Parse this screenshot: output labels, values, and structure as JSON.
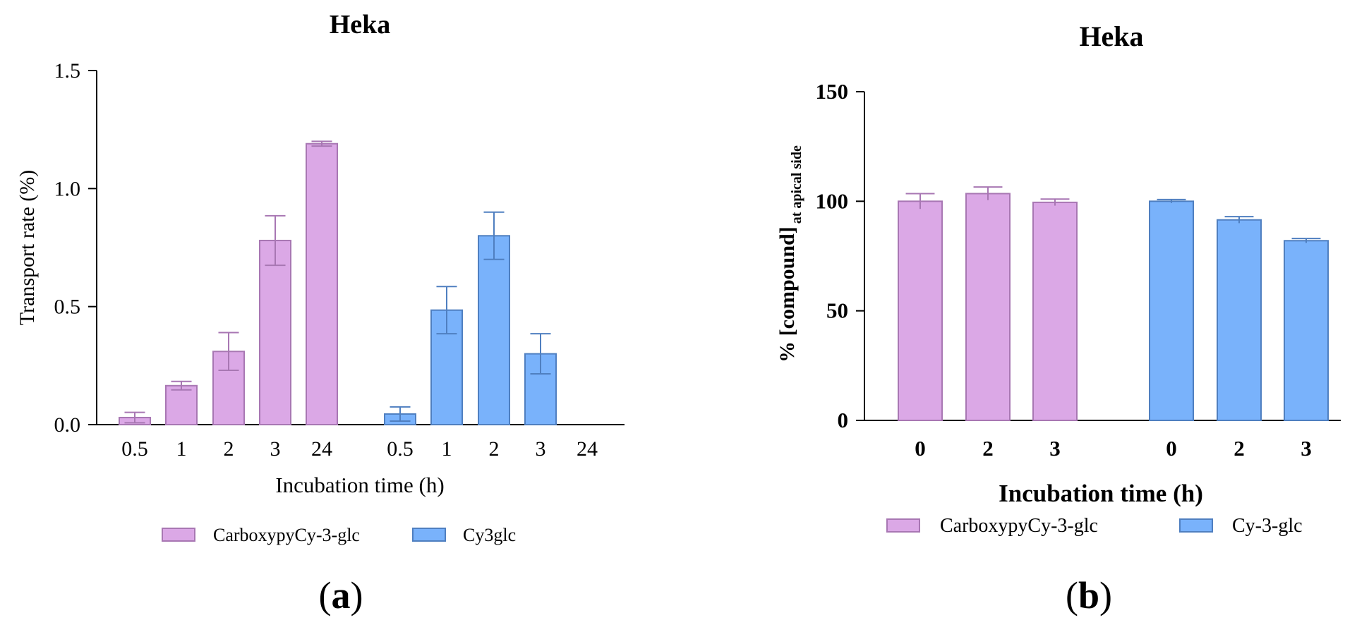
{
  "chart_data": [
    {
      "panel_label": "a",
      "type": "bar",
      "title": "Heka",
      "xlabel": "Incubation time (h)",
      "ylabel": "Transport rate (%)",
      "ylim": [
        0,
        1.5
      ],
      "yticks": [
        "0.0",
        "0.5",
        "1.0",
        "1.5"
      ],
      "legend_position": "bottom",
      "series": [
        {
          "name": "CarboxypyCy-3-glc",
          "color": "#dba8e6",
          "edge": "#a877b3",
          "categories": [
            "0.5",
            "1",
            "2",
            "3",
            "24"
          ],
          "values": [
            0.03,
            0.165,
            0.31,
            0.78,
            1.19
          ],
          "errors": [
            0.022,
            0.018,
            0.08,
            0.105,
            0.01
          ]
        },
        {
          "name": "Cy3glc",
          "color": "#79b2fb",
          "edge": "#4f7fc0",
          "categories": [
            "0.5",
            "1",
            "2",
            "3",
            "24"
          ],
          "values": [
            0.045,
            0.485,
            0.8,
            0.3,
            null
          ],
          "errors": [
            0.03,
            0.1,
            0.1,
            0.085,
            null
          ]
        }
      ]
    },
    {
      "panel_label": "b",
      "type": "bar",
      "title": "Heka",
      "xlabel": "Incubation time (h)",
      "ylabel": "% [compound]",
      "ylabel_sub": "at apical side",
      "ylim": [
        0,
        150
      ],
      "yticks": [
        "0",
        "50",
        "100",
        "150"
      ],
      "legend_position": "bottom",
      "series": [
        {
          "name": "CarboxypyCy-3-glc",
          "color": "#dba8e6",
          "edge": "#a877b3",
          "categories": [
            "0",
            "2",
            "3"
          ],
          "values": [
            100,
            103.5,
            99.5
          ],
          "errors": [
            3.5,
            3,
            1.5
          ]
        },
        {
          "name": "Cy-3-glc",
          "color": "#79b2fb",
          "edge": "#4f7fc0",
          "categories": [
            "0",
            "2",
            "3"
          ],
          "values": [
            100,
            91.5,
            82
          ],
          "errors": [
            0.8,
            1.5,
            1
          ]
        }
      ]
    }
  ]
}
